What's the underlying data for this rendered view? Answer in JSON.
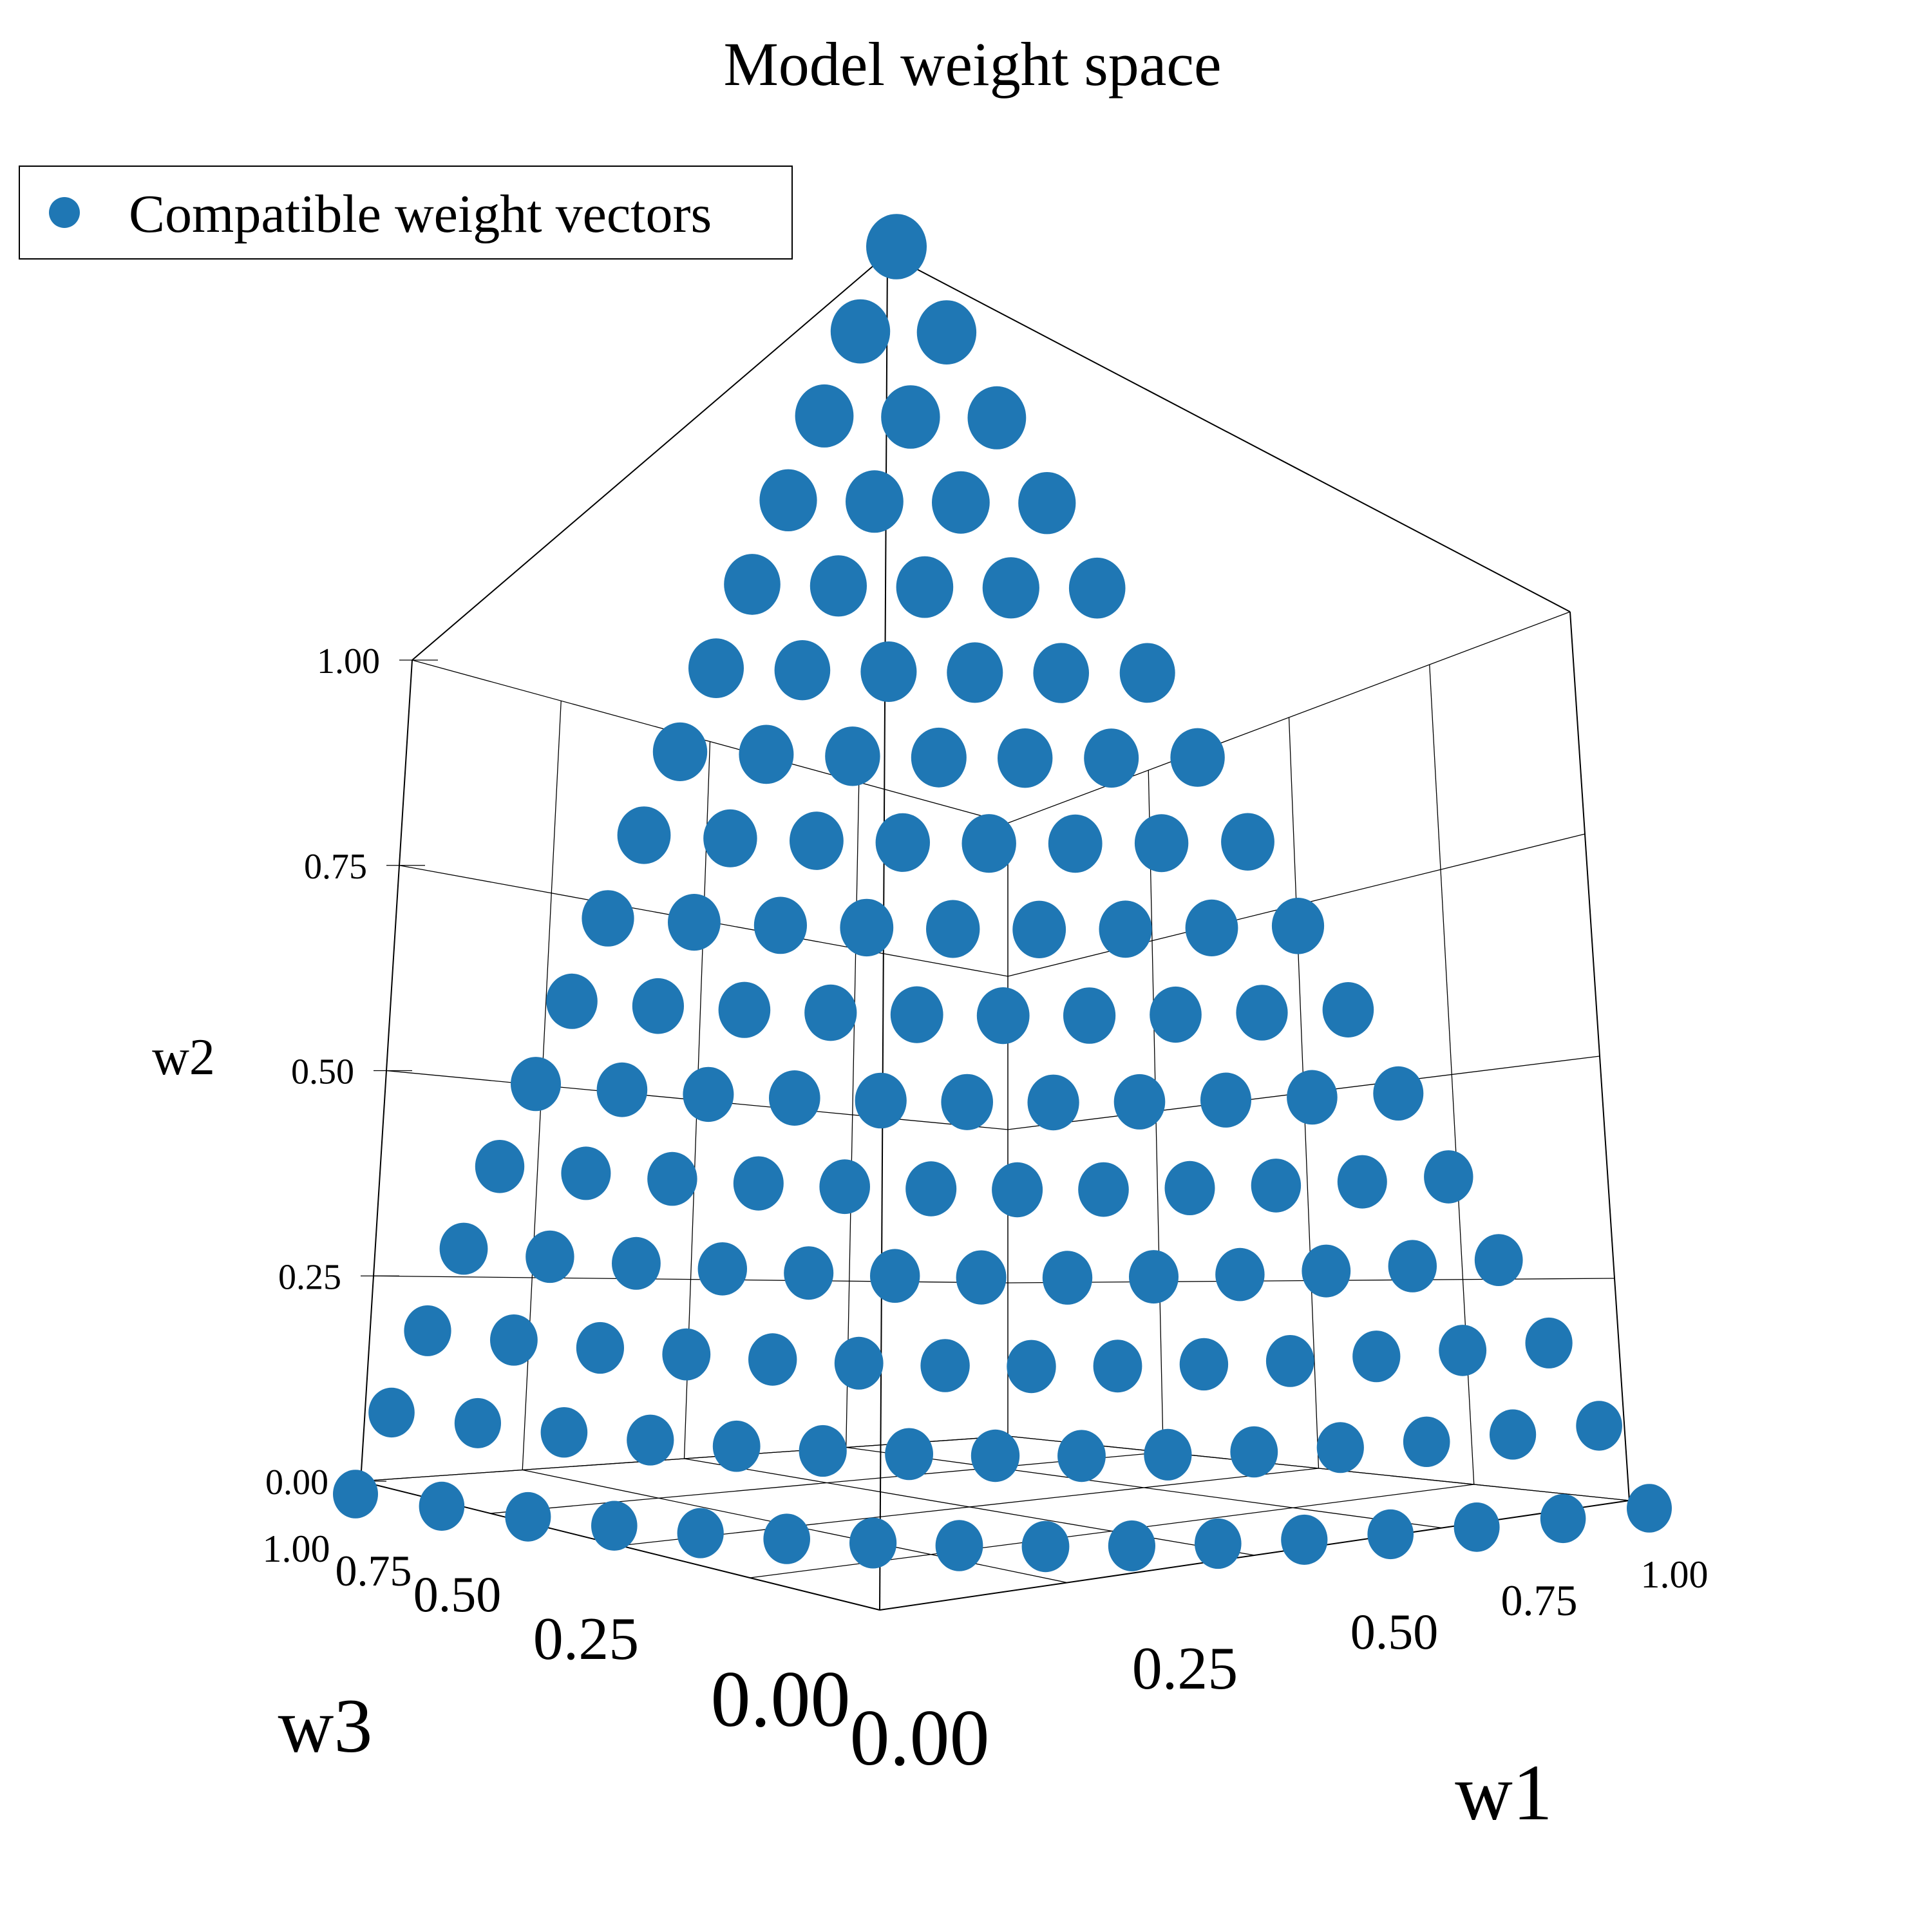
{
  "chart_data": {
    "type": "scatter3d",
    "title": "Model weight space",
    "xlabel": "w1",
    "ylabel": "w2",
    "zlabel": "w3",
    "xlim": [
      0,
      1
    ],
    "ylim": [
      0,
      1
    ],
    "zlim": [
      0,
      1
    ],
    "ticks": {
      "w1": [
        "0.00",
        "0.25",
        "0.50",
        "0.75",
        "1.00"
      ],
      "w2": [
        "0.00",
        "0.25",
        "0.50",
        "0.75",
        "1.00"
      ],
      "w3": [
        "0.00",
        "0.25",
        "0.50",
        "0.75",
        "1.00"
      ]
    },
    "series": [
      {
        "name": "Compatible weight vectors",
        "color": "#1f77b4",
        "grid_steps": 15,
        "constraint": "w1 + w2 + w3 = 1, each in [0, 1]"
      }
    ],
    "legend": {
      "placement": "top-left"
    },
    "grid": true
  }
}
